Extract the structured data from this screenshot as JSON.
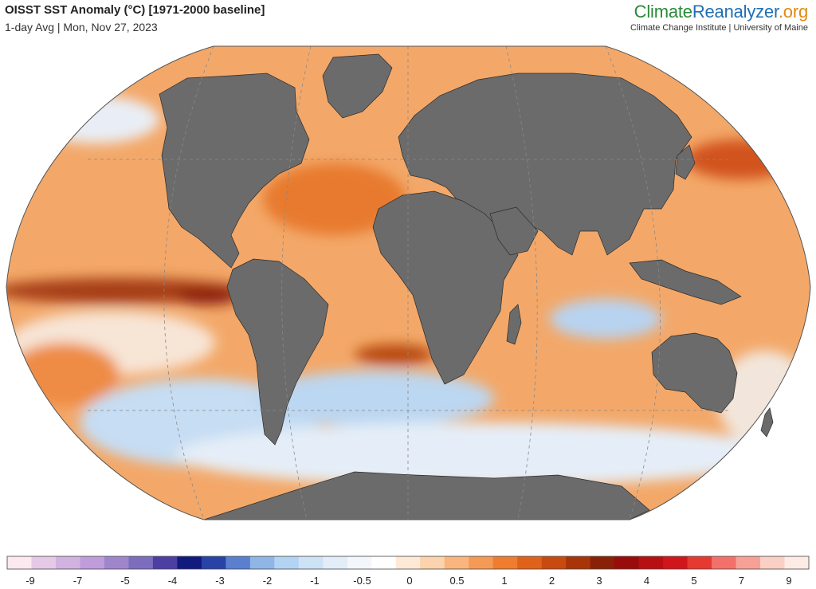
{
  "header": {
    "title": "OISST SST Anomaly (°C) [1971-2000 baseline]",
    "subtitle": "1-day Avg | Mon, Nov 27, 2023"
  },
  "brand": {
    "logo_part1": "Climate",
    "logo_part2": "Reanalyzer",
    "logo_part3": ".org",
    "sub": "Climate Change Institute | University of Maine"
  },
  "colors": {
    "land": "#6b6b6b",
    "ocean_base": "#f3a869",
    "graticule": "#888888"
  },
  "colorbar": {
    "ticks": [
      "-9",
      "-7",
      "-5",
      "-4",
      "-3",
      "-2",
      "-1",
      "-0.5",
      "0",
      "0.5",
      "1",
      "2",
      "3",
      "4",
      "5",
      "7",
      "9"
    ],
    "colors": [
      "#fbe9ef",
      "#e6c9e6",
      "#d2b2e0",
      "#bf9ddb",
      "#9f86cc",
      "#7d6dbe",
      "#4c3ea3",
      "#101a7f",
      "#2942a8",
      "#5a7fcf",
      "#8fb6e6",
      "#b3d3f2",
      "#cde2f5",
      "#e2edf8",
      "#f3f6fb",
      "#fffefe",
      "#fde9d6",
      "#fbd3ac",
      "#f8b67e",
      "#f49a55",
      "#ef7c2f",
      "#e0621a",
      "#c84a10",
      "#a83408",
      "#8a2006",
      "#9a0b0b",
      "#b80f12",
      "#d0161a",
      "#e63a30",
      "#f3716a",
      "#f7a196",
      "#fbd0c4",
      "#fdebe6"
    ]
  }
}
